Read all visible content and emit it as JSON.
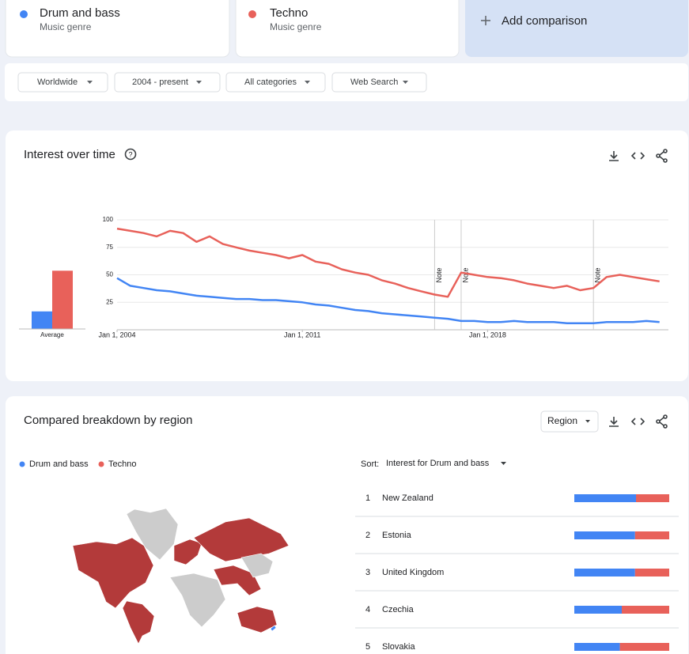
{
  "add_comparison": "Add comparison",
  "term_subtitles": [
    "Music genre",
    "Music genre"
  ],
  "filters": [
    "Worldwide",
    "2004 - present",
    "All categories",
    "Web Search"
  ],
  "interest_over_time": {
    "title": "Interest over time"
  },
  "chart_data": [
    {
      "type": "line",
      "x": [
        "2004-01-01",
        "2004-07-01",
        "2005-01-01",
        "2005-07-01",
        "2006-01-01",
        "2006-07-01",
        "2007-01-01",
        "2007-07-01",
        "2008-01-01",
        "2008-07-01",
        "2009-01-01",
        "2009-07-01",
        "2010-01-01",
        "2010-07-01",
        "2011-01-01",
        "2011-07-01",
        "2012-01-01",
        "2012-07-01",
        "2013-01-01",
        "2013-07-01",
        "2014-01-01",
        "2014-07-01",
        "2015-01-01",
        "2015-07-01",
        "2016-01-01",
        "2016-07-01",
        "2017-01-01",
        "2017-07-01",
        "2018-01-01",
        "2018-07-01",
        "2019-01-01",
        "2019-07-01",
        "2020-01-01",
        "2020-07-01",
        "2021-01-01",
        "2021-07-01",
        "2022-01-01",
        "2022-07-01",
        "2023-01-01",
        "2023-07-01",
        "2024-01-01",
        "2024-07-01"
      ],
      "xlim": [
        "2004-01-01",
        "2024-11-01"
      ],
      "xticks": [
        {
          "value": "2004-01-01",
          "label": "Jan 1, 2004"
        },
        {
          "value": "2011-01-01",
          "label": "Jan 1, 2011"
        },
        {
          "value": "2018-01-01",
          "label": "Jan 1, 2018"
        }
      ],
      "ylim": [
        0,
        100
      ],
      "yticks": [
        25,
        50,
        75,
        100
      ],
      "grid": true,
      "series": [
        {
          "name": "Drum and bass",
          "color": "#4285f4",
          "values": [
            47,
            40,
            38,
            36,
            35,
            33,
            31,
            30,
            29,
            28,
            28,
            27,
            27,
            26,
            25,
            23,
            22,
            20,
            18,
            17,
            15,
            14,
            13,
            12,
            11,
            10,
            8,
            8,
            7,
            7,
            8,
            7,
            7,
            7,
            6,
            6,
            6,
            7,
            7,
            7,
            8,
            7
          ]
        },
        {
          "name": "Techno",
          "color": "#e8615a",
          "values": [
            92,
            90,
            88,
            85,
            90,
            88,
            80,
            85,
            78,
            75,
            72,
            70,
            68,
            65,
            68,
            62,
            60,
            55,
            52,
            50,
            45,
            42,
            38,
            35,
            32,
            30,
            52,
            50,
            48,
            47,
            45,
            42,
            40,
            38,
            40,
            36,
            38,
            48,
            50,
            48,
            46,
            44
          ]
        }
      ],
      "annotations": [
        {
          "x": "2016-01-01",
          "label": "Note"
        },
        {
          "x": "2017-01-01",
          "label": "Note"
        },
        {
          "x": "2022-01-01",
          "label": "Note"
        }
      ]
    },
    {
      "type": "bar",
      "categories": [
        "Average"
      ],
      "ylim": [
        0,
        100
      ],
      "series": [
        {
          "name": "Drum and bass",
          "color": "#4285f4",
          "values": [
            16
          ]
        },
        {
          "name": "Techno",
          "color": "#e8615a",
          "values": [
            53
          ]
        }
      ]
    }
  ],
  "region_breakdown": {
    "title": "Compared breakdown by region",
    "dropdown": "Region",
    "sort_label": "Sort:",
    "sort_value": "Interest for Drum and bass",
    "rows": [
      {
        "rank": 1,
        "name": "New Zealand",
        "values": [
          65,
          35
        ]
      },
      {
        "rank": 2,
        "name": "Estonia",
        "values": [
          64,
          36
        ]
      },
      {
        "rank": 3,
        "name": "United Kingdom",
        "values": [
          64,
          36
        ]
      },
      {
        "rank": 4,
        "name": "Czechia",
        "values": [
          50,
          50
        ]
      },
      {
        "rank": 5,
        "name": "Slovakia",
        "values": [
          48,
          52
        ]
      }
    ]
  }
}
